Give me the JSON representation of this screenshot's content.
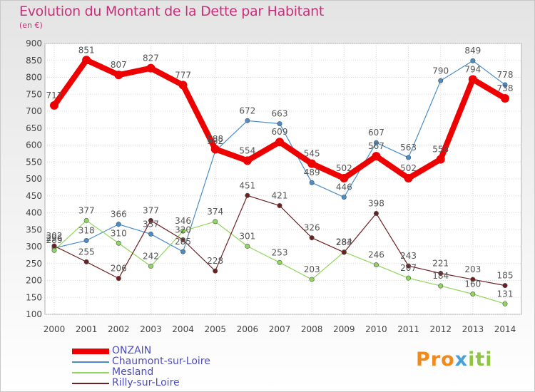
{
  "chart_data": {
    "type": "line",
    "title": "Evolution du Montant de la Dette par Habitant",
    "unit": "(en €)",
    "x": [
      "2000",
      "2001",
      "2002",
      "2003",
      "2004",
      "2005",
      "2006",
      "2007",
      "2008",
      "2009",
      "2010",
      "2011",
      "2012",
      "2013",
      "2014"
    ],
    "ylim": [
      100,
      900
    ],
    "yticks": [
      100,
      150,
      200,
      250,
      300,
      350,
      400,
      450,
      500,
      550,
      600,
      650,
      700,
      750,
      800,
      850,
      900
    ],
    "grid": true,
    "legend_position": "bottom-left",
    "series": [
      {
        "name": "ONZAIN",
        "color": "#ee0000",
        "values": [
          717,
          851,
          807,
          827,
          777,
          588,
          554,
          609,
          545,
          502,
          567,
          502,
          558,
          794,
          738
        ]
      },
      {
        "name": "Chaumont-sur-Loire",
        "color": "#4a8cc8",
        "values": [
          296,
          318,
          366,
          337,
          285,
          582,
          672,
          663,
          489,
          446,
          607,
          563,
          790,
          849,
          778
        ]
      },
      {
        "name": "Mesland",
        "color": "#8fd65c",
        "values": [
          289,
          377,
          310,
          242,
          346,
          374,
          301,
          253,
          203,
          284,
          246,
          207,
          184,
          160,
          131
        ]
      },
      {
        "name": "Rilly-sur-Loire",
        "color": "#6e2020",
        "values": [
          302,
          255,
          206,
          377,
          320,
          228,
          451,
          421,
          326,
          283,
          398,
          243,
          221,
          203,
          185
        ]
      }
    ]
  },
  "logo": {
    "part1": "Pro",
    "part2": "x",
    "part3": "iti"
  }
}
